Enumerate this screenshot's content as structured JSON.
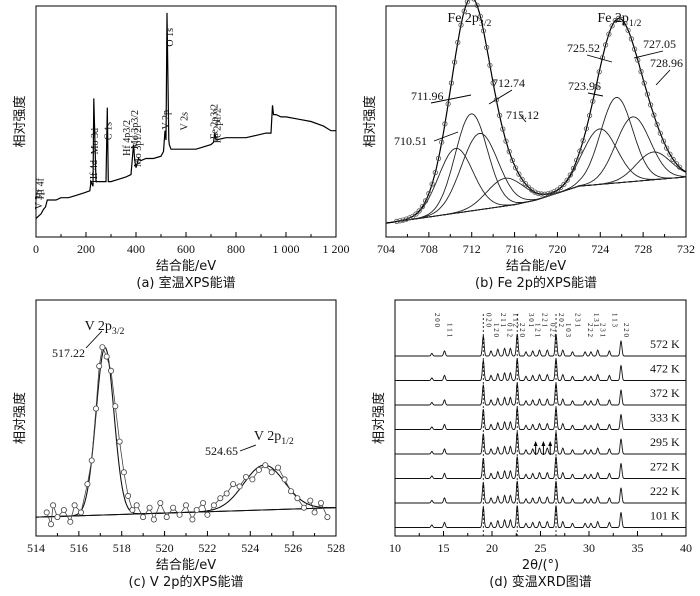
{
  "figure": {
    "panels": [
      {
        "id": "a",
        "caption": "(a) 室温XPS能谱"
      },
      {
        "id": "b",
        "caption": "(b) Fe 2p的XPS能谱"
      },
      {
        "id": "c",
        "caption": "(c) V 2p的XPS能谱"
      },
      {
        "id": "d",
        "caption": "(d) 变温XRD图谱"
      }
    ]
  },
  "chart_data": [
    {
      "id": "a",
      "type": "line",
      "title": "",
      "xlabel": "结合能/eV",
      "ylabel": "相对强度",
      "xlim": [
        0,
        1200
      ],
      "ylim": [
        0,
        100
      ],
      "xticks": [
        0,
        200,
        400,
        600,
        800,
        1000,
        1200
      ],
      "xtick_labels": [
        "0",
        "200",
        "400",
        "600",
        "800",
        "1 000",
        "1 200"
      ],
      "x": [
        0,
        10,
        20,
        30,
        38,
        45,
        60,
        80,
        100,
        130,
        160,
        190,
        215,
        220,
        228,
        231,
        240,
        270,
        280,
        285,
        289,
        300,
        330,
        360,
        380,
        390,
        395,
        400,
        410,
        418,
        440,
        470,
        500,
        510,
        516,
        520,
        524,
        531,
        533,
        540,
        560,
        600,
        640,
        700,
        710,
        715,
        720,
        760,
        800,
        840,
        880,
        920,
        940,
        946,
        950,
        960,
        980,
        1000,
        1050,
        1100,
        1150,
        1180,
        1200
      ],
      "y": [
        8,
        9,
        10,
        12,
        13,
        16,
        16,
        16,
        17,
        17,
        18,
        19,
        20,
        24,
        22,
        60,
        24,
        24,
        24,
        56,
        24,
        24,
        25,
        26,
        27,
        40,
        33,
        30,
        34,
        33,
        34,
        34,
        35,
        37,
        46,
        42,
        97,
        42,
        40,
        38,
        38,
        38,
        38,
        40,
        41,
        45,
        42,
        43,
        43,
        43,
        44,
        45,
        45,
        57,
        53,
        53,
        52,
        52,
        51,
        50,
        48,
        46,
        46
      ],
      "annotations": [
        "Hf 4f",
        "V 3p",
        "Hf 4d",
        "Mo 3d",
        "C 1s",
        "Hf 4p3/2",
        "Mo 3p3/2",
        "Mo 3p1/2",
        "V 2p",
        "O 1s",
        "V 2s",
        "Fe 2p3/2",
        "Fe 2p1/2"
      ]
    },
    {
      "id": "b",
      "type": "line",
      "title": "",
      "xlabel": "结合能/eV",
      "ylabel": "相对强度",
      "xlim": [
        704,
        732
      ],
      "ylim": [
        0,
        100
      ],
      "xticks": [
        704,
        708,
        712,
        716,
        720,
        724,
        728,
        732
      ],
      "xtick_labels": [
        "704",
        "708",
        "712",
        "716",
        "720",
        "724",
        "728",
        "732"
      ],
      "group_labels": [
        {
          "text": "Fe 2p",
          "sub": "3/2",
          "x": 711.6
        },
        {
          "text": "Fe 2p",
          "sub": "1/2",
          "x": 725.6
        }
      ],
      "peaks": [
        {
          "center": 710.51,
          "height": 28,
          "width": 1.6
        },
        {
          "center": 711.96,
          "height": 42,
          "width": 1.5
        },
        {
          "center": 712.74,
          "height": 33,
          "width": 1.7
        },
        {
          "center": 715.12,
          "height": 12,
          "width": 1.7
        },
        {
          "center": 723.96,
          "height": 24,
          "width": 1.6
        },
        {
          "center": 725.52,
          "height": 37,
          "width": 1.5
        },
        {
          "center": 727.05,
          "height": 28,
          "width": 1.6
        },
        {
          "center": 728.96,
          "height": 12,
          "width": 1.6
        }
      ],
      "baseline": [
        [
          704,
          6
        ],
        [
          716,
          14
        ],
        [
          718,
          16
        ],
        [
          722,
          22
        ],
        [
          732,
          26
        ]
      ],
      "peak_labels": [
        "710.51",
        "711.96",
        "712.74",
        "715.12",
        "723.96",
        "725.52",
        "727.05",
        "728.96"
      ]
    },
    {
      "id": "c",
      "type": "scatter",
      "title": "",
      "xlabel": "结合能/eV",
      "ylabel": "相对强度",
      "xlim": [
        514,
        528
      ],
      "ylim": [
        0,
        100
      ],
      "xticks": [
        514,
        516,
        518,
        520,
        522,
        524,
        526,
        528
      ],
      "xtick_labels": [
        "514",
        "516",
        "518",
        "520",
        "522",
        "524",
        "526",
        "528"
      ],
      "group_labels": [
        {
          "text": "V 2p",
          "sub": "3/2",
          "x": 517.2
        },
        {
          "text": "V 2p",
          "sub": "1/2",
          "x": 525.1
        }
      ],
      "peaks": [
        {
          "center": 517.22,
          "height": 71,
          "width": 0.42
        },
        {
          "center": 524.65,
          "height": 19,
          "width": 0.95
        }
      ],
      "baseline": [
        [
          514,
          8
        ],
        [
          528,
          12
        ]
      ],
      "peak_labels": [
        "517.22",
        "524.65"
      ],
      "points": [
        [
          514.5,
          10
        ],
        [
          514.7,
          5
        ],
        [
          514.8,
          13
        ],
        [
          515.0,
          8
        ],
        [
          515.3,
          11
        ],
        [
          515.6,
          6
        ],
        [
          515.8,
          13
        ],
        [
          516.1,
          10
        ],
        [
          516.4,
          22
        ],
        [
          516.6,
          32
        ],
        [
          516.8,
          54
        ],
        [
          516.95,
          72
        ],
        [
          517.1,
          80
        ],
        [
          517.3,
          76
        ],
        [
          517.5,
          70
        ],
        [
          517.7,
          55
        ],
        [
          517.9,
          40
        ],
        [
          518.1,
          27
        ],
        [
          518.3,
          17
        ],
        [
          518.5,
          11
        ],
        [
          518.7,
          13
        ],
        [
          519.0,
          8
        ],
        [
          519.3,
          12
        ],
        [
          519.5,
          7
        ],
        [
          519.8,
          14
        ],
        [
          520.1,
          8
        ],
        [
          520.4,
          12
        ],
        [
          520.7,
          9
        ],
        [
          521.0,
          13
        ],
        [
          521.3,
          7
        ],
        [
          521.5,
          11
        ],
        [
          521.8,
          14
        ],
        [
          522.0,
          9
        ],
        [
          522.3,
          13
        ],
        [
          522.6,
          16
        ],
        [
          522.9,
          18
        ],
        [
          523.2,
          22
        ],
        [
          523.5,
          21
        ],
        [
          523.8,
          25
        ],
        [
          524.1,
          24
        ],
        [
          524.4,
          28
        ],
        [
          524.7,
          30
        ],
        [
          525.0,
          27
        ],
        [
          525.3,
          29
        ],
        [
          525.6,
          24
        ],
        [
          525.9,
          19
        ],
        [
          526.2,
          16
        ],
        [
          526.5,
          12
        ],
        [
          526.8,
          15
        ],
        [
          527.0,
          10
        ],
        [
          527.3,
          14
        ],
        [
          527.6,
          8
        ]
      ]
    },
    {
      "id": "d",
      "type": "line",
      "title": "",
      "xlabel": "2θ/(°)",
      "ylabel": "相对强度",
      "xlim": [
        10,
        40
      ],
      "ylim": [
        0,
        100
      ],
      "xticks": [
        10,
        15,
        20,
        25,
        30,
        35,
        40
      ],
      "xtick_labels": [
        "10",
        "15",
        "20",
        "25",
        "30",
        "35",
        "40"
      ],
      "series": [
        {
          "name": "101 K"
        },
        {
          "name": "222 K"
        },
        {
          "name": "272 K"
        },
        {
          "name": "295 K"
        },
        {
          "name": "333 K"
        },
        {
          "name": "372 K"
        },
        {
          "name": "472 K"
        },
        {
          "name": "572 K"
        }
      ],
      "peak_positions": [
        13.8,
        15.1,
        19.1,
        19.9,
        20.6,
        21.3,
        21.9,
        22.6,
        23.5,
        24.2,
        24.9,
        25.7,
        26.6,
        27.3,
        28.3,
        29.6,
        30.2,
        30.9,
        32.1,
        33.3
      ],
      "peak_heights": [
        3,
        6,
        24,
        6,
        8,
        9,
        9,
        26,
        5,
        6,
        7,
        7,
        26,
        7,
        5,
        5,
        5,
        7,
        6,
        18
      ],
      "hkl_labels": [
        "2 0 0",
        "1 1 1",
        "0 2 0",
        "1 2 0",
        "2 1 1",
        "0 1 2",
        "1 1 2",
        "2 2 0",
        "3 0 1",
        "1 2 1",
        "2 2 1",
        "0 2 2",
        "2 0 2",
        "1 0 3",
        "2 3 1",
        "2 2 2",
        "1 3 1",
        "2 3 1",
        "1 1 3",
        "2 2 0"
      ]
    }
  ]
}
